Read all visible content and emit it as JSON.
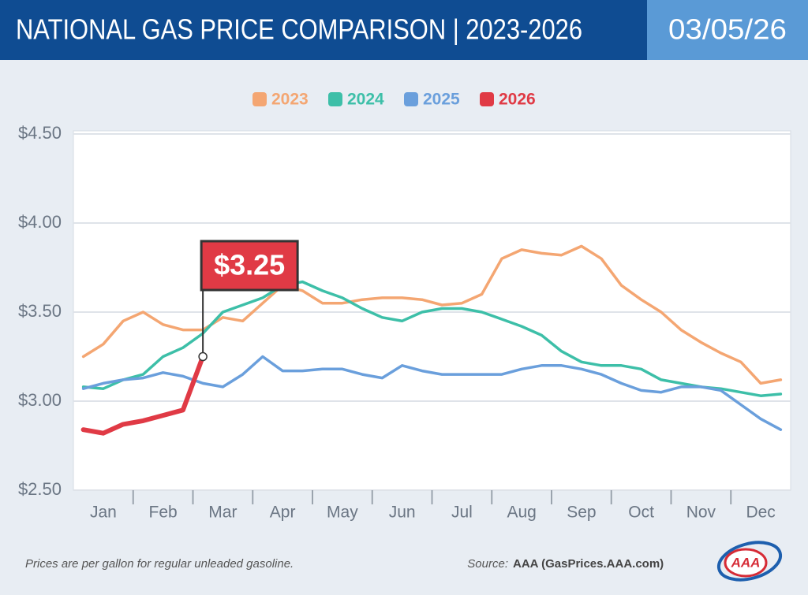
{
  "chart_data": {
    "type": "line",
    "title": "NATIONAL GAS PRICE COMPARISON | 2023-2026",
    "date": "03/05/26",
    "note": "Prices are per gallon for regular unleaded gasoline.",
    "source_label": "Source:",
    "source": "AAA (GasPrices.AAA.com)",
    "logo": "AAA",
    "categories": [
      null,
      "Jan",
      null,
      null,
      "Feb",
      null,
      null,
      "Mar",
      null,
      null,
      "Apr",
      null,
      null,
      "May",
      null,
      null,
      "Jun",
      null,
      null,
      "Jul",
      null,
      null,
      "Aug",
      null,
      null,
      "Sep",
      null,
      null,
      "Oct",
      null,
      null,
      "Nov",
      null,
      null,
      "Dec",
      null
    ],
    "ylim": [
      2.5,
      4.5
    ],
    "yticks": [
      {
        "value": 2.5,
        "label": "$2.50"
      },
      {
        "value": 3.0,
        "label": "$3.00"
      },
      {
        "value": 3.5,
        "label": "$3.50"
      },
      {
        "value": 4.0,
        "label": "$4.00"
      },
      {
        "value": 4.5,
        "label": "$4.50"
      }
    ],
    "grid": true,
    "legend": "top",
    "series": [
      {
        "name": "2023",
        "color": "#f4a672",
        "values": [
          3.25,
          3.32,
          3.45,
          3.5,
          3.43,
          3.4,
          3.4,
          3.47,
          3.45,
          3.55,
          3.65,
          3.62,
          3.55,
          3.55,
          3.57,
          3.58,
          3.58,
          3.57,
          3.54,
          3.55,
          3.6,
          3.8,
          3.85,
          3.83,
          3.82,
          3.87,
          3.8,
          3.65,
          3.57,
          3.5,
          3.4,
          3.33,
          3.27,
          3.22,
          3.1,
          3.12
        ]
      },
      {
        "name": "2024",
        "color": "#3dbfa8",
        "values": [
          3.08,
          3.07,
          3.12,
          3.15,
          3.25,
          3.3,
          3.38,
          3.5,
          3.54,
          3.58,
          3.65,
          3.67,
          3.62,
          3.58,
          3.52,
          3.47,
          3.45,
          3.5,
          3.52,
          3.52,
          3.5,
          3.46,
          3.42,
          3.37,
          3.28,
          3.22,
          3.2,
          3.2,
          3.18,
          3.12,
          3.1,
          3.08,
          3.07,
          3.05,
          3.03,
          3.04
        ]
      },
      {
        "name": "2025",
        "color": "#6a9fdc",
        "values": [
          3.07,
          3.1,
          3.12,
          3.13,
          3.16,
          3.14,
          3.1,
          3.08,
          3.15,
          3.25,
          3.17,
          3.17,
          3.18,
          3.18,
          3.15,
          3.13,
          3.2,
          3.17,
          3.15,
          3.15,
          3.15,
          3.15,
          3.18,
          3.2,
          3.2,
          3.18,
          3.15,
          3.1,
          3.06,
          3.05,
          3.08,
          3.08,
          3.06,
          2.98,
          2.9,
          2.84
        ]
      },
      {
        "name": "2026",
        "color": "#e03a45",
        "values": [
          2.84,
          2.82,
          2.87,
          2.89,
          2.92,
          2.95,
          3.25,
          null,
          null,
          null,
          null,
          null,
          null,
          null,
          null,
          null,
          null,
          null,
          null,
          null,
          null,
          null,
          null,
          null,
          null,
          null,
          null,
          null,
          null,
          null,
          null,
          null,
          null,
          null,
          null,
          null
        ],
        "value_labels": [
          null,
          null,
          null,
          null,
          null,
          null,
          "$3.25",
          null,
          null,
          null,
          null,
          null,
          null,
          null,
          null,
          null,
          null,
          null,
          null,
          null,
          null,
          null,
          null,
          null,
          null,
          null,
          null,
          null,
          null,
          null,
          null,
          null,
          null,
          null,
          null,
          null
        ]
      }
    ]
  }
}
